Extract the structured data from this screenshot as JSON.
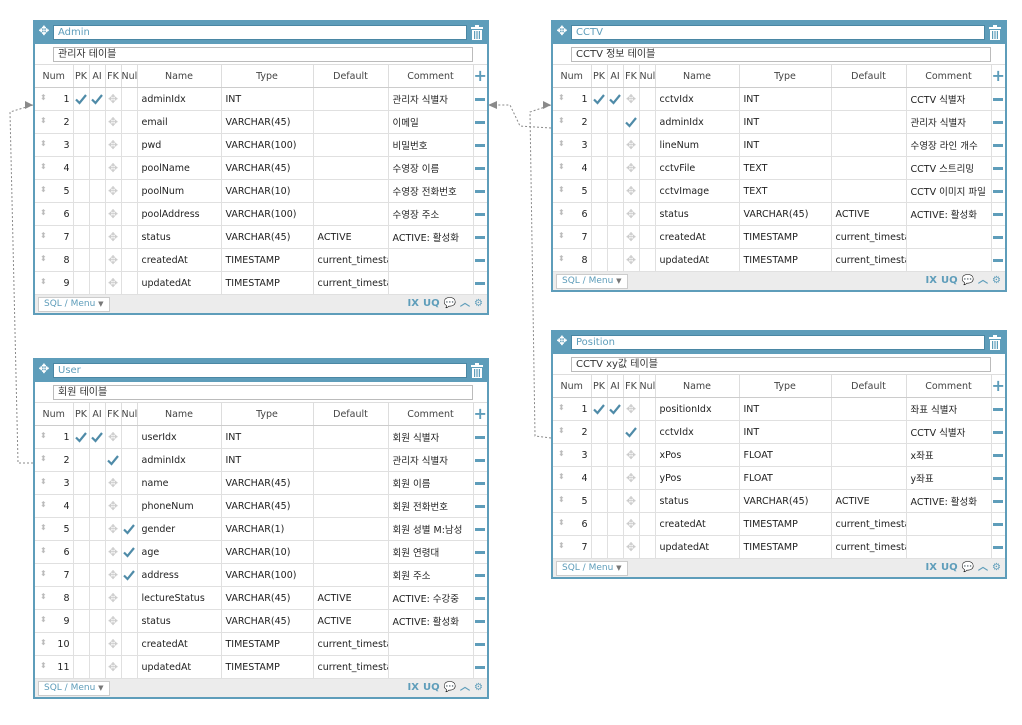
{
  "columns": {
    "num": "Num",
    "pk": "PK",
    "ai": "AI",
    "fk": "FK",
    "null": "Null",
    "name": "Name",
    "type": "Type",
    "default": "Default",
    "comment": "Comment"
  },
  "footer": {
    "sql_menu": "SQL / Menu",
    "ix": "IX",
    "uq": "UQ"
  },
  "tables": {
    "admin": {
      "title": "Admin",
      "comment": "관리자 테이블",
      "rows": [
        {
          "num": "1",
          "pk": true,
          "ai": true,
          "fk": false,
          "nul": false,
          "name": "adminIdx",
          "type": "INT",
          "def": "",
          "cmt": "관리자 식별자"
        },
        {
          "num": "2",
          "pk": false,
          "ai": false,
          "fk": false,
          "nul": false,
          "name": "email",
          "type": "VARCHAR(45)",
          "def": "",
          "cmt": "이메일"
        },
        {
          "num": "3",
          "pk": false,
          "ai": false,
          "fk": false,
          "nul": false,
          "name": "pwd",
          "type": "VARCHAR(100)",
          "def": "",
          "cmt": "비밀번호"
        },
        {
          "num": "4",
          "pk": false,
          "ai": false,
          "fk": false,
          "nul": false,
          "name": "poolName",
          "type": "VARCHAR(45)",
          "def": "",
          "cmt": "수영장 이름"
        },
        {
          "num": "5",
          "pk": false,
          "ai": false,
          "fk": false,
          "nul": false,
          "name": "poolNum",
          "type": "VARCHAR(10)",
          "def": "",
          "cmt": "수영장 전화번호"
        },
        {
          "num": "6",
          "pk": false,
          "ai": false,
          "fk": false,
          "nul": false,
          "name": "poolAddress",
          "type": "VARCHAR(100)",
          "def": "",
          "cmt": "수영장 주소"
        },
        {
          "num": "7",
          "pk": false,
          "ai": false,
          "fk": false,
          "nul": false,
          "name": "status",
          "type": "VARCHAR(45)",
          "def": "ACTIVE",
          "cmt": "ACTIVE: 활성화"
        },
        {
          "num": "8",
          "pk": false,
          "ai": false,
          "fk": false,
          "nul": false,
          "name": "createdAt",
          "type": "TIMESTAMP",
          "def": "current_timestamp",
          "cmt": ""
        },
        {
          "num": "9",
          "pk": false,
          "ai": false,
          "fk": false,
          "nul": false,
          "name": "updatedAt",
          "type": "TIMESTAMP",
          "def": "current_timestamp",
          "cmt": ""
        }
      ]
    },
    "cctv": {
      "title": "CCTV",
      "comment": "CCTV 정보 테이블",
      "rows": [
        {
          "num": "1",
          "pk": true,
          "ai": true,
          "fk": false,
          "nul": false,
          "name": "cctvIdx",
          "type": "INT",
          "def": "",
          "cmt": "CCTV 식별자"
        },
        {
          "num": "2",
          "pk": false,
          "ai": false,
          "fk": true,
          "nul": false,
          "name": "adminIdx",
          "type": "INT",
          "def": "",
          "cmt": "관리자 식별자"
        },
        {
          "num": "3",
          "pk": false,
          "ai": false,
          "fk": false,
          "nul": false,
          "name": "lineNum",
          "type": "INT",
          "def": "",
          "cmt": "수영장 라인 개수"
        },
        {
          "num": "4",
          "pk": false,
          "ai": false,
          "fk": false,
          "nul": false,
          "name": "cctvFile",
          "type": "TEXT",
          "def": "",
          "cmt": "CCTV 스트리밍"
        },
        {
          "num": "5",
          "pk": false,
          "ai": false,
          "fk": false,
          "nul": false,
          "name": "cctvImage",
          "type": "TEXT",
          "def": "",
          "cmt": "CCTV 이미지 파일"
        },
        {
          "num": "6",
          "pk": false,
          "ai": false,
          "fk": false,
          "nul": false,
          "name": "status",
          "type": "VARCHAR(45)",
          "def": "ACTIVE",
          "cmt": "ACTIVE: 활성화"
        },
        {
          "num": "7",
          "pk": false,
          "ai": false,
          "fk": false,
          "nul": false,
          "name": "createdAt",
          "type": "TIMESTAMP",
          "def": "current_timestamp",
          "cmt": ""
        },
        {
          "num": "8",
          "pk": false,
          "ai": false,
          "fk": false,
          "nul": false,
          "name": "updatedAt",
          "type": "TIMESTAMP",
          "def": "current_timestamp",
          "cmt": ""
        }
      ]
    },
    "user": {
      "title": "User",
      "comment": "회원 테이블",
      "rows": [
        {
          "num": "1",
          "pk": true,
          "ai": true,
          "fk": false,
          "nul": false,
          "name": "userIdx",
          "type": "INT",
          "def": "",
          "cmt": "회원 식별자"
        },
        {
          "num": "2",
          "pk": false,
          "ai": false,
          "fk": true,
          "nul": false,
          "name": "adminIdx",
          "type": "INT",
          "def": "",
          "cmt": "관리자 식별자"
        },
        {
          "num": "3",
          "pk": false,
          "ai": false,
          "fk": false,
          "nul": false,
          "name": "name",
          "type": "VARCHAR(45)",
          "def": "",
          "cmt": "회원 이름"
        },
        {
          "num": "4",
          "pk": false,
          "ai": false,
          "fk": false,
          "nul": false,
          "name": "phoneNum",
          "type": "VARCHAR(45)",
          "def": "",
          "cmt": "회원 전화번호"
        },
        {
          "num": "5",
          "pk": false,
          "ai": false,
          "fk": false,
          "nul": true,
          "name": "gender",
          "type": "VARCHAR(1)",
          "def": "",
          "cmt": "회원 성별 M:남성"
        },
        {
          "num": "6",
          "pk": false,
          "ai": false,
          "fk": false,
          "nul": true,
          "name": "age",
          "type": "VARCHAR(10)",
          "def": "",
          "cmt": "회원 연령대"
        },
        {
          "num": "7",
          "pk": false,
          "ai": false,
          "fk": false,
          "nul": true,
          "name": "address",
          "type": "VARCHAR(100)",
          "def": "",
          "cmt": "회원 주소"
        },
        {
          "num": "8",
          "pk": false,
          "ai": false,
          "fk": false,
          "nul": false,
          "name": "lectureStatus",
          "type": "VARCHAR(45)",
          "def": "ACTIVE",
          "cmt": "ACTIVE: 수강중"
        },
        {
          "num": "9",
          "pk": false,
          "ai": false,
          "fk": false,
          "nul": false,
          "name": "status",
          "type": "VARCHAR(45)",
          "def": "ACTIVE",
          "cmt": "ACTIVE: 활성화"
        },
        {
          "num": "10",
          "pk": false,
          "ai": false,
          "fk": false,
          "nul": false,
          "name": "createdAt",
          "type": "TIMESTAMP",
          "def": "current_timestamp",
          "cmt": ""
        },
        {
          "num": "11",
          "pk": false,
          "ai": false,
          "fk": false,
          "nul": false,
          "name": "updatedAt",
          "type": "TIMESTAMP",
          "def": "current_timestamp",
          "cmt": ""
        }
      ]
    },
    "position": {
      "title": "Position",
      "comment": "CCTV xy값 테이블",
      "rows": [
        {
          "num": "1",
          "pk": true,
          "ai": true,
          "fk": false,
          "nul": false,
          "name": "positionIdx",
          "type": "INT",
          "def": "",
          "cmt": "좌표 식별자"
        },
        {
          "num": "2",
          "pk": false,
          "ai": false,
          "fk": true,
          "nul": false,
          "name": "cctvIdx",
          "type": "INT",
          "def": "",
          "cmt": "CCTV 식별자"
        },
        {
          "num": "3",
          "pk": false,
          "ai": false,
          "fk": false,
          "nul": false,
          "name": "xPos",
          "type": "FLOAT",
          "def": "",
          "cmt": "x좌표"
        },
        {
          "num": "4",
          "pk": false,
          "ai": false,
          "fk": false,
          "nul": false,
          "name": "yPos",
          "type": "FLOAT",
          "def": "",
          "cmt": "y좌표"
        },
        {
          "num": "5",
          "pk": false,
          "ai": false,
          "fk": false,
          "nul": false,
          "name": "status",
          "type": "VARCHAR(45)",
          "def": "ACTIVE",
          "cmt": "ACTIVE: 활성화"
        },
        {
          "num": "6",
          "pk": false,
          "ai": false,
          "fk": false,
          "nul": false,
          "name": "createdAt",
          "type": "TIMESTAMP",
          "def": "current_timestamp",
          "cmt": ""
        },
        {
          "num": "7",
          "pk": false,
          "ai": false,
          "fk": false,
          "nul": false,
          "name": "updatedAt",
          "type": "TIMESTAMP",
          "def": "current_timestamp",
          "cmt": ""
        }
      ]
    }
  },
  "colors": {
    "accent": "#5e9dba",
    "check": "#4f8ba8",
    "link": "#8a8a8a"
  }
}
